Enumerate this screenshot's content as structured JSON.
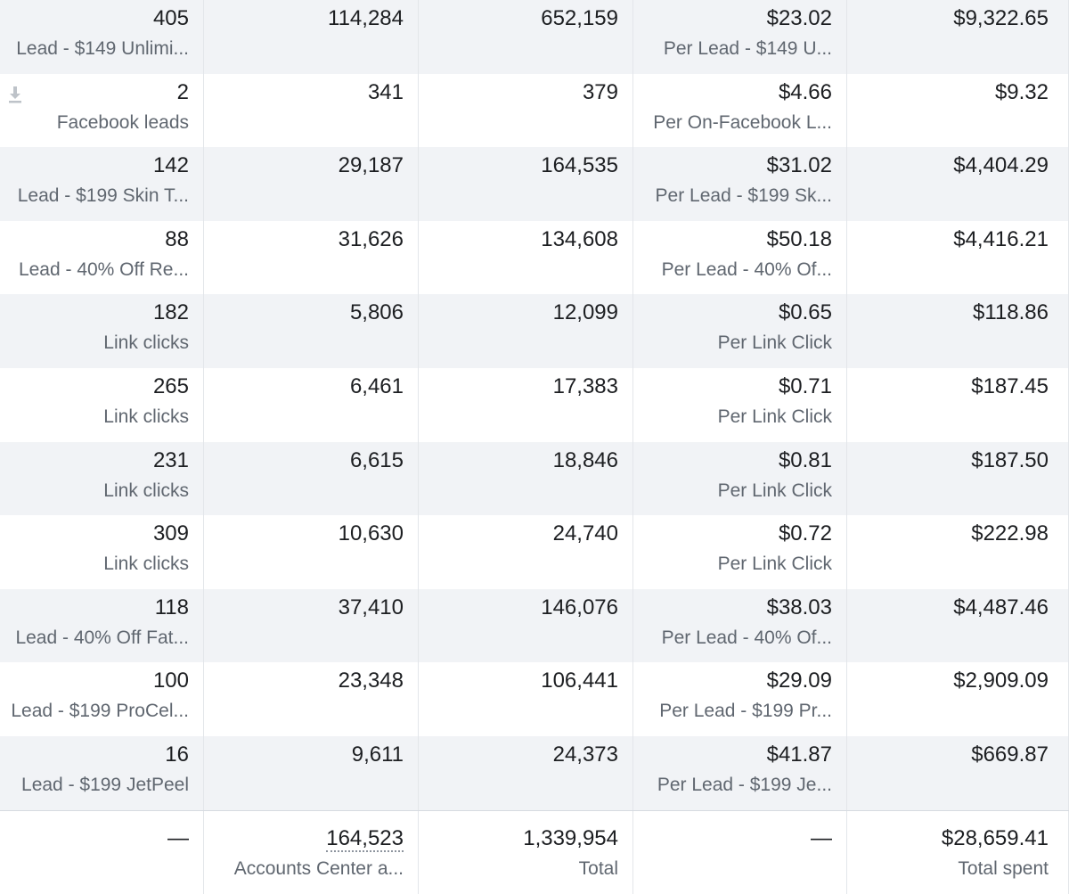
{
  "rows": [
    {
      "results": "405",
      "results_label": "Lead - $149 Unlimi...",
      "reach": "114,284",
      "impressions": "652,159",
      "cost": "$23.02",
      "cost_label": "Per Lead - $149 U...",
      "spent": "$9,322.65"
    },
    {
      "results": "2",
      "results_label": "Facebook leads",
      "reach": "341",
      "impressions": "379",
      "cost": "$4.66",
      "cost_label": "Per On-Facebook L...",
      "spent": "$9.32",
      "icon": "download-icon"
    },
    {
      "results": "142",
      "results_label": "Lead - $199 Skin T...",
      "reach": "29,187",
      "impressions": "164,535",
      "cost": "$31.02",
      "cost_label": "Per Lead - $199 Sk...",
      "spent": "$4,404.29"
    },
    {
      "results": "88",
      "results_label": "Lead - 40% Off Re...",
      "reach": "31,626",
      "impressions": "134,608",
      "cost": "$50.18",
      "cost_label": "Per Lead - 40% Of...",
      "spent": "$4,416.21"
    },
    {
      "results": "182",
      "results_label": "Link clicks",
      "reach": "5,806",
      "impressions": "12,099",
      "cost": "$0.65",
      "cost_label": "Per Link Click",
      "spent": "$118.86"
    },
    {
      "results": "265",
      "results_label": "Link clicks",
      "reach": "6,461",
      "impressions": "17,383",
      "cost": "$0.71",
      "cost_label": "Per Link Click",
      "spent": "$187.45"
    },
    {
      "results": "231",
      "results_label": "Link clicks",
      "reach": "6,615",
      "impressions": "18,846",
      "cost": "$0.81",
      "cost_label": "Per Link Click",
      "spent": "$187.50"
    },
    {
      "results": "309",
      "results_label": "Link clicks",
      "reach": "10,630",
      "impressions": "24,740",
      "cost": "$0.72",
      "cost_label": "Per Link Click",
      "spent": "$222.98"
    },
    {
      "results": "118",
      "results_label": "Lead - 40% Off Fat...",
      "reach": "37,410",
      "impressions": "146,076",
      "cost": "$38.03",
      "cost_label": "Per Lead - 40% Of...",
      "spent": "$4,487.46"
    },
    {
      "results": "100",
      "results_label": "Lead - $199 ProCel...",
      "reach": "23,348",
      "impressions": "106,441",
      "cost": "$29.09",
      "cost_label": "Per Lead - $199 Pr...",
      "spent": "$2,909.09"
    },
    {
      "results": "16",
      "results_label": "Lead - $199 JetPeel",
      "reach": "9,611",
      "impressions": "24,373",
      "cost": "$41.87",
      "cost_label": "Per Lead - $199 Je...",
      "spent": "$669.87"
    }
  ],
  "total": {
    "results": "—",
    "reach": "164,523",
    "reach_label": "Accounts Center a...",
    "impressions": "1,339,954",
    "impressions_label": "Total",
    "cost": "—",
    "spent": "$28,659.41",
    "spent_label": "Total spent"
  }
}
